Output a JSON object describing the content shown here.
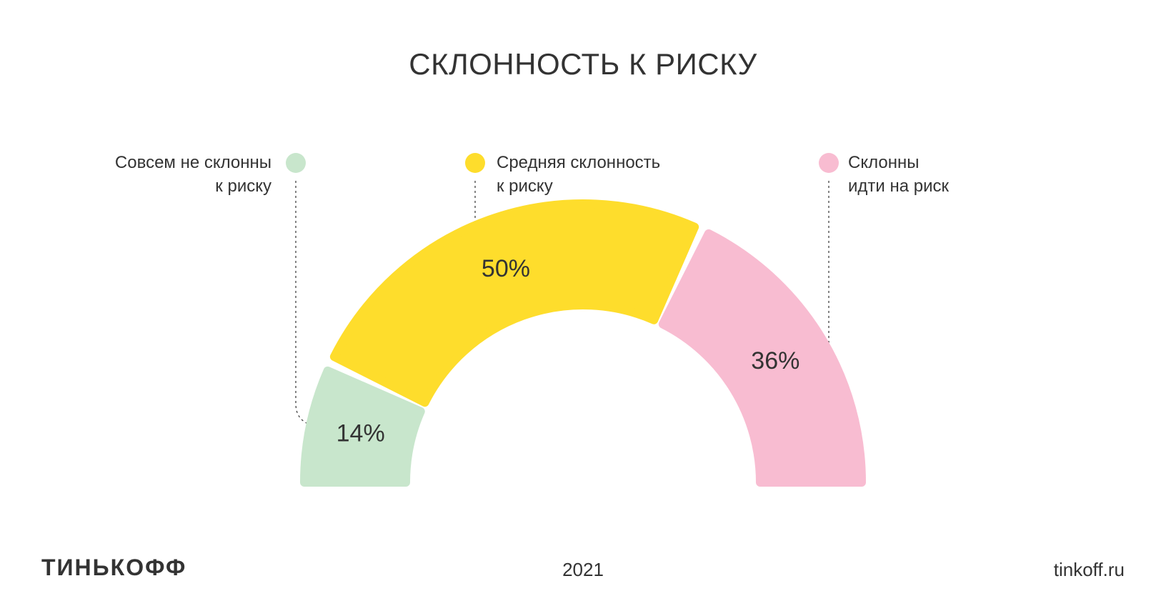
{
  "title": "СКЛОННОСТЬ К РИСКУ",
  "footer": {
    "logo": "ТИНЬКОФФ",
    "year": "2021",
    "site": "tinkoff.ru"
  },
  "chart_data": {
    "type": "pie",
    "variant": "semi-donut",
    "title": "СКЛОННОСТЬ К РИСКУ",
    "series": [
      {
        "label_lines": [
          "Совсем не склонны",
          "к риску"
        ],
        "value": 14,
        "value_label": "14%",
        "color": "#c8e6cc"
      },
      {
        "label_lines": [
          "Средняя склонность",
          "к риску"
        ],
        "value": 50,
        "value_label": "50%",
        "color": "#fedd2c"
      },
      {
        "label_lines": [
          "Склонны",
          "идти на риск"
        ],
        "value": 36,
        "value_label": "36%",
        "color": "#f8bcd1"
      }
    ],
    "legend_placement": "top"
  }
}
